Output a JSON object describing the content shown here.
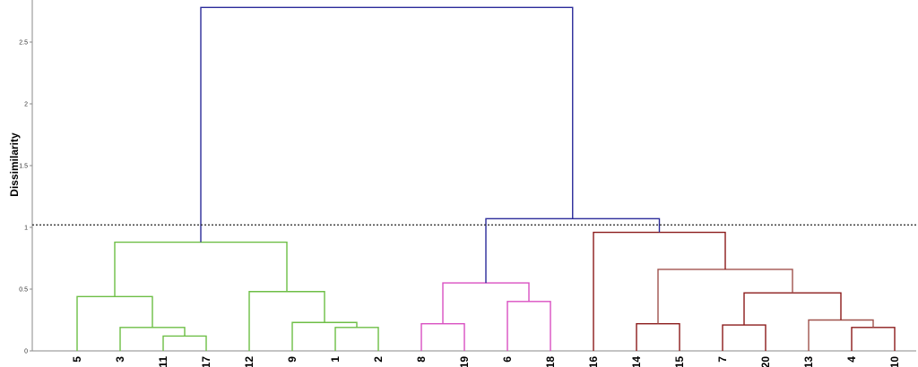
{
  "chart_data": {
    "type": "dendrogram",
    "ylabel": "Dissimilarity",
    "ylim": [
      0,
      2.8
    ],
    "yticks": [
      0,
      0.5,
      1,
      1.5,
      2,
      2.5
    ],
    "ytick_labels": [
      "0",
      "0.5",
      "1",
      "1.5",
      "2",
      "2.5"
    ],
    "grid": false,
    "cut_line": 1.02,
    "leaf_order": [
      "5",
      "3",
      "11",
      "17",
      "12",
      "9",
      "1",
      "2",
      "8",
      "19",
      "6",
      "18",
      "16",
      "14",
      "15",
      "7",
      "20",
      "13",
      "4",
      "10"
    ],
    "colors": {
      "green": "#6dbe45",
      "magenta": "#d94fc1",
      "maroon": "#8b1a1a",
      "brown": "#a0524d",
      "blue": "#2b2b9a"
    },
    "merges": [
      {
        "left": "11",
        "right": "17",
        "height": 0.12,
        "color": "green"
      },
      {
        "left": "3",
        "right": "11+17",
        "height": 0.19,
        "color": "green"
      },
      {
        "left": "5",
        "right": "3+11+17",
        "height": 0.44,
        "color": "green"
      },
      {
        "left": "1",
        "right": "2",
        "height": 0.19,
        "color": "green"
      },
      {
        "left": "9",
        "right": "1+2",
        "height": 0.23,
        "color": "green"
      },
      {
        "left": "12",
        "right": "9+1+2",
        "height": 0.48,
        "color": "green"
      },
      {
        "left": "5..17",
        "right": "12..2",
        "height": 0.88,
        "color": "green"
      },
      {
        "left": "8",
        "right": "19",
        "height": 0.22,
        "color": "magenta"
      },
      {
        "left": "6",
        "right": "18",
        "height": 0.4,
        "color": "magenta"
      },
      {
        "left": "8+19",
        "right": "6+18",
        "height": 0.55,
        "color": "magenta"
      },
      {
        "left": "14",
        "right": "15",
        "height": 0.22,
        "color": "maroon"
      },
      {
        "left": "7",
        "right": "20",
        "height": 0.21,
        "color": "maroon"
      },
      {
        "left": "4",
        "right": "10",
        "height": 0.19,
        "color": "maroon"
      },
      {
        "left": "13",
        "right": "4+10",
        "height": 0.25,
        "color": "brown"
      },
      {
        "left": "7+20",
        "right": "13+4+10",
        "height": 0.47,
        "color": "maroon"
      },
      {
        "left": "14+15",
        "right": "7..10",
        "height": 0.66,
        "color": "brown"
      },
      {
        "left": "16",
        "right": "14..10",
        "height": 0.96,
        "color": "maroon"
      },
      {
        "left": "8..18",
        "right": "16..10",
        "height": 1.07,
        "color": "blue"
      },
      {
        "left": "5..2",
        "right": "8..10",
        "height": 2.78,
        "color": "blue"
      }
    ]
  }
}
